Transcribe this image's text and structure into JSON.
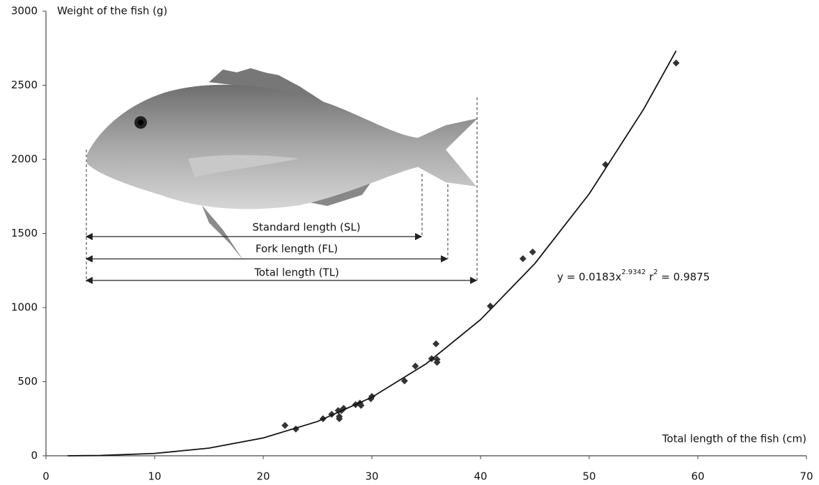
{
  "chart_data": {
    "type": "scatter",
    "y_label": "Weight of the fish (g)",
    "x_label": "Total length of the fish (cm)",
    "xlim": [
      0,
      70
    ],
    "xticks": [
      0,
      10,
      20,
      30,
      40,
      50,
      60,
      70
    ],
    "ylim": [
      0,
      3000
    ],
    "yticks": [
      0,
      500,
      1000,
      1500,
      2000,
      2500,
      3000
    ],
    "series": [
      {
        "color": "#333333",
        "marker": "diamond",
        "x": [
          22,
          23,
          25.5,
          26.3,
          26.9,
          27,
          27,
          27.2,
          27.4,
          28.5,
          28.9,
          29,
          29.9,
          30,
          33,
          34,
          35.5,
          35.9,
          36,
          36,
          40.9,
          43.9,
          44.8,
          51.5,
          58
        ],
        "values": [
          205,
          180,
          250,
          280,
          305,
          250,
          265,
          305,
          320,
          345,
          355,
          340,
          385,
          400,
          505,
          605,
          655,
          755,
          650,
          630,
          1010,
          1330,
          1375,
          1965,
          2650
        ]
      },
      {
        "color": "#111111",
        "marker": "line",
        "x": [
          2,
          5,
          10,
          15,
          20,
          25,
          30,
          35,
          40,
          45,
          50,
          55,
          58
        ],
        "values": [
          0.14,
          2.06,
          15.7,
          51.7,
          120.2,
          231.5,
          394.9,
          621.0,
          918.7,
          1297,
          1767,
          2337,
          2732
        ]
      }
    ],
    "equation": {
      "text": "y = 0.0183x",
      "exponent": "2.9342",
      "r_text": " r",
      "r_exponent": "2",
      "r_value": " = 0.9875"
    },
    "fish_labels": [
      "Standard length (SL)",
      "Fork length (FL)",
      "Total length (TL)"
    ]
  }
}
